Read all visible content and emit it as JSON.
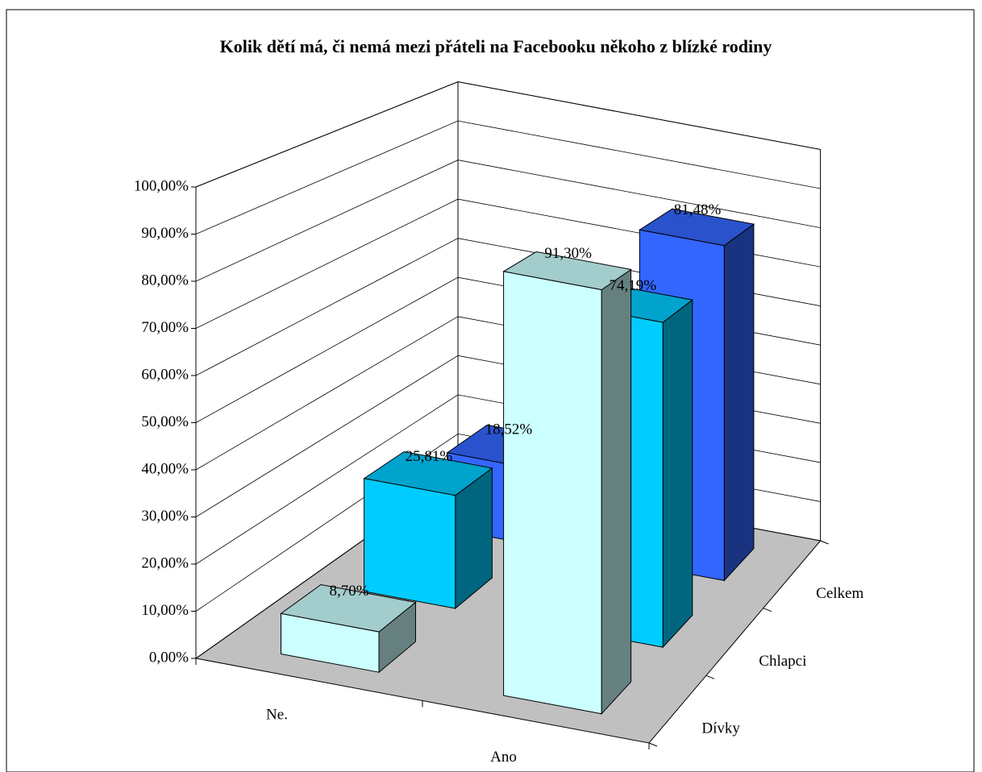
{
  "chart_data": {
    "type": "bar3d",
    "title": "Kolik dětí má, či nemá mezi přáteli na Facebooku někoho z blízké rodiny",
    "categories": [
      "Ne.",
      "Ano"
    ],
    "series": [
      {
        "name": "Dívky",
        "color": "#ccffff",
        "values": [
          8.7,
          91.3
        ],
        "value_labels": [
          "8,70%",
          "91,30%"
        ]
      },
      {
        "name": "Chlapci",
        "color": "#00ccff",
        "values": [
          25.81,
          74.19
        ],
        "value_labels": [
          "25,81%",
          "74,19%"
        ]
      },
      {
        "name": "Celkem",
        "color": "#3366ff",
        "values": [
          18.52,
          81.48
        ],
        "value_labels": [
          "18,52%",
          "81,48%"
        ]
      }
    ],
    "ylim": [
      0,
      100
    ],
    "yticks": [
      {
        "value": 0,
        "label": "0,00%"
      },
      {
        "value": 10,
        "label": "10,00%"
      },
      {
        "value": 20,
        "label": "20,00%"
      },
      {
        "value": 30,
        "label": "30,00%"
      },
      {
        "value": 40,
        "label": "40,00%"
      },
      {
        "value": 50,
        "label": "50,00%"
      },
      {
        "value": 60,
        "label": "60,00%"
      },
      {
        "value": 70,
        "label": "70,00%"
      },
      {
        "value": 80,
        "label": "80,00%"
      },
      {
        "value": 90,
        "label": "90,00%"
      },
      {
        "value": 100,
        "label": "100,00%"
      }
    ],
    "grid": true
  }
}
